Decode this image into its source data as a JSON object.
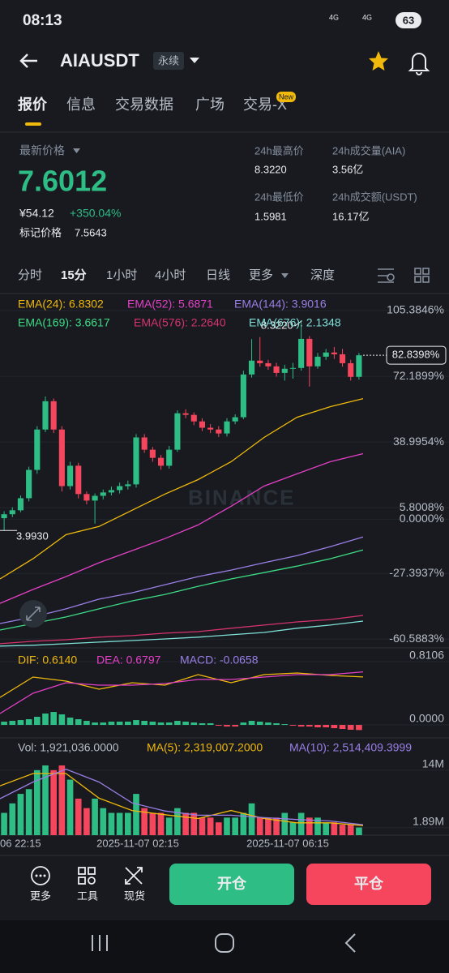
{
  "status": {
    "time": "08:13",
    "net1": "4G",
    "net2": "4G",
    "battery": "63"
  },
  "header": {
    "title": "AIAUSDT",
    "badge": "永续"
  },
  "tabs": {
    "items": [
      "报价",
      "信息",
      "交易数据",
      "广场",
      "交易-X"
    ],
    "new_badge": "New"
  },
  "stats": {
    "last_price_label": "最新价格",
    "last_price": "7.6012",
    "cny": "¥54.12",
    "change": "+350.04%",
    "mark_label": "标记价格",
    "mark_price": "7.5643",
    "high_label": "24h最高价",
    "high": "8.3220",
    "low_label": "24h最低价",
    "low": "1.5981",
    "vol_label": "24h成交量(AIA)",
    "vol": "3.56亿",
    "amount_label": "24h成交额(USDT)",
    "amount": "16.17亿"
  },
  "intervals": [
    "分时",
    "15分",
    "1小时",
    "4小时",
    "日线",
    "更多",
    "深度"
  ],
  "chart_data": [
    {
      "type": "candlestick",
      "open": [
        0.5,
        2.5,
        4.5,
        10.6,
        24.9,
        45.3,
        59.6,
        45.3,
        16.7,
        27.0,
        12.7,
        9.4,
        11.8,
        13.5,
        14.7,
        16.7,
        17.6,
        41.3,
        35.1,
        31.0,
        27.0,
        35.1,
        53.5,
        52.7,
        49.4,
        46.2,
        45.3,
        43.3,
        49.4,
        51.5,
        73.1,
        80.1,
        78.8,
        77.2,
        73.9,
        76.0,
        76.4,
        91.1,
        77.2,
        82.1,
        84.2,
        83.3,
        78.8,
        71.9
      ],
      "high": [
        4.0,
        6.0,
        12.0,
        26.5,
        47.0,
        62.0,
        61.0,
        47.0,
        29.0,
        28.5,
        14.0,
        13.0,
        15.0,
        16.5,
        18.5,
        19.5,
        43.0,
        43.0,
        36.5,
        32.5,
        37.0,
        55.0,
        55.5,
        54.0,
        51.0,
        48.0,
        47.0,
        51.0,
        53.0,
        75.0,
        91.0,
        92.0,
        80.5,
        79.0,
        78.0,
        79.0,
        100.0,
        92.5,
        84.0,
        86.0,
        87.0,
        86.0,
        80.5,
        84.0
      ],
      "low": [
        -5.7,
        1.0,
        3.5,
        9.0,
        23.0,
        44.0,
        43.5,
        14.0,
        15.0,
        10.5,
        7.5,
        -2.2,
        10.0,
        12.0,
        13.0,
        15.0,
        16.0,
        33.5,
        29.0,
        25.0,
        25.5,
        34.0,
        51.0,
        47.5,
        44.5,
        43.5,
        41.5,
        41.8,
        48.0,
        50.5,
        71.5,
        77.0,
        75.5,
        72.0,
        70.0,
        71.0,
        75.0,
        67.0,
        76.0,
        80.5,
        81.0,
        77.0,
        70.0,
        70.5
      ],
      "close": [
        2.5,
        4.5,
        10.6,
        24.9,
        45.3,
        59.6,
        45.3,
        16.7,
        27.0,
        12.7,
        9.4,
        11.8,
        13.5,
        14.7,
        16.7,
        17.6,
        41.3,
        35.1,
        31.0,
        27.0,
        35.1,
        53.5,
        52.7,
        49.4,
        46.2,
        45.3,
        43.3,
        49.4,
        51.5,
        73.1,
        80.1,
        78.8,
        77.2,
        73.9,
        76.0,
        76.4,
        91.1,
        77.2,
        82.1,
        84.2,
        83.3,
        78.8,
        71.9,
        82.8
      ],
      "up_color": "#2ebd85",
      "down_color": "#f6465d",
      "ylim": [
        -65,
        114
      ],
      "yticks": [
        {
          "value": 105.3846,
          "label": "105.3846%"
        },
        {
          "value": 72.1899,
          "label": "72.1899%"
        },
        {
          "value": 38.9954,
          "label": "38.9954%"
        },
        {
          "value": 5.8008,
          "label": "5.8008%"
        },
        {
          "value": 0,
          "label": "0.0000%"
        },
        {
          "value": -27.3937,
          "label": "-27.3937%"
        },
        {
          "value": -60.5883,
          "label": "-60.5883%"
        }
      ],
      "last": {
        "value": 82.8398,
        "label": "82.8398%"
      },
      "high_label": "8.3220",
      "low_label": "3.9930",
      "watermark": "BINANCE",
      "series": [
        {
          "name": "EMA(24): 6.8302",
          "color": "#f0b90b",
          "values": [
            -30.2,
            -20,
            -7.8,
            -3.7,
            4.5,
            12.7,
            20,
            29,
            41.3,
            51.5,
            56.8,
            60.9
          ]
        },
        {
          "name": "EMA(52): 5.6871",
          "color": "#e440c6",
          "values": [
            -42.5,
            -35.5,
            -29,
            -22,
            -15.9,
            -9.8,
            -2.9,
            6.5,
            16.7,
            22.9,
            29,
            33.1
          ]
        },
        {
          "name": "EMA(144): 3.9016",
          "color": "#9b7fe6",
          "values": [
            -52.7,
            -49.4,
            -45.3,
            -40.4,
            -37.2,
            -33.1,
            -29,
            -25.7,
            -22,
            -18.4,
            -13.9,
            -9.0
          ]
        },
        {
          "name": "EMA(169): 3.6617",
          "color": "#3ddc84",
          "values": [
            -56,
            -52.7,
            -49.4,
            -45.3,
            -41.3,
            -38,
            -33.9,
            -30.2,
            -27,
            -23.7,
            -20,
            -15.5
          ]
        },
        {
          "name": "EMA(576): 2.2640",
          "color": "#d6336c",
          "values": [
            -62.9,
            -61.7,
            -60.9,
            -59.6,
            -58.8,
            -57.6,
            -56.8,
            -55.1,
            -53.5,
            -51.9,
            -50.7,
            -48.6
          ]
        },
        {
          "name": "EMA(676): 2.1348",
          "color": "#7fe0d8",
          "values": [
            -64.1,
            -63.7,
            -62.9,
            -62.1,
            -61.3,
            -60.5,
            -59.6,
            -58.4,
            -57.2,
            -55.1,
            -53.5,
            -51.5
          ]
        }
      ],
      "x_labels": [
        "06 22:15",
        "2025-11-07 02:15",
        "2025-11-07 06:15"
      ]
    },
    {
      "type": "bar",
      "values": [
        0.042,
        0.052,
        0.062,
        0.073,
        0.104,
        0.146,
        0.166,
        0.135,
        0.094,
        0.073,
        0.052,
        0.031,
        0.031,
        0.042,
        0.042,
        0.042,
        0.062,
        0.052,
        0.042,
        0.031,
        0.031,
        0.052,
        0.042,
        0.031,
        0.021,
        0.021,
        -0.01,
        -0.021,
        -0.021,
        0.031,
        0.052,
        0.042,
        0.031,
        0.021,
        0.01,
        -0.01,
        -0.021,
        -0.021,
        -0.031,
        -0.031,
        -0.042,
        -0.052,
        -0.062,
        -0.0658
      ],
      "up_color": "#2ebd85",
      "down_color": "#f6465d",
      "ylim": [
        -0.166,
        0.977
      ],
      "yticks": [
        {
          "value": 0.8106,
          "label": "0.8106"
        },
        {
          "value": 0,
          "label": "0.0000"
        }
      ],
      "macd_label": "MACD: -0.0658",
      "series": [
        {
          "name": "DIF: 0.6140",
          "color": "#f0b90b",
          "values": [
            0.353,
            0.613,
            0.561,
            0.457,
            0.541,
            0.509,
            0.645,
            0.541,
            0.645,
            0.665,
            0.634,
            0.614
          ]
        },
        {
          "name": "DEA: 0.6797",
          "color": "#e440c6",
          "values": [
            0.146,
            0.405,
            0.541,
            0.509,
            0.509,
            0.53,
            0.582,
            0.582,
            0.613,
            0.645,
            0.645,
            0.6797
          ]
        }
      ]
    },
    {
      "type": "bar",
      "values": [
        5,
        7,
        9,
        10,
        14,
        15,
        14,
        15,
        12,
        8,
        6,
        8,
        6,
        5,
        5,
        5,
        9,
        6,
        5,
        5,
        4,
        6,
        5,
        5,
        4,
        4,
        3,
        4,
        4,
        5,
        7,
        4,
        4,
        4,
        5,
        3,
        5,
        4,
        4,
        3,
        3,
        2.5,
        2.5,
        1.92
      ],
      "ylim": [
        0.3,
        20.3
      ],
      "yticks": [
        {
          "value": 14,
          "label": "14M"
        },
        {
          "value": 1.89,
          "label": "1.89M"
        }
      ],
      "vol_label": "Vol: 1,921,036.0000",
      "series": [
        {
          "name": "MA(5): 2,319,007.2000",
          "color": "#f0b90b",
          "values": [
            10.7,
            13.3,
            13.3,
            8.1,
            5.5,
            4.6,
            3.8,
            5.5,
            3.8,
            2.9,
            2.9,
            2.32
          ]
        },
        {
          "name": "MA(10): 2,514,409.3999",
          "color": "#9b7fe6",
          "values": [
            8.0,
            11.5,
            14.2,
            11.5,
            7.1,
            5.4,
            4.5,
            4.5,
            4.0,
            3.6,
            3.3,
            2.51
          ]
        }
      ]
    }
  ],
  "toolbar": {
    "items": [
      "更多",
      "工具",
      "现货"
    ],
    "open": "开仓",
    "close": "平仓"
  }
}
